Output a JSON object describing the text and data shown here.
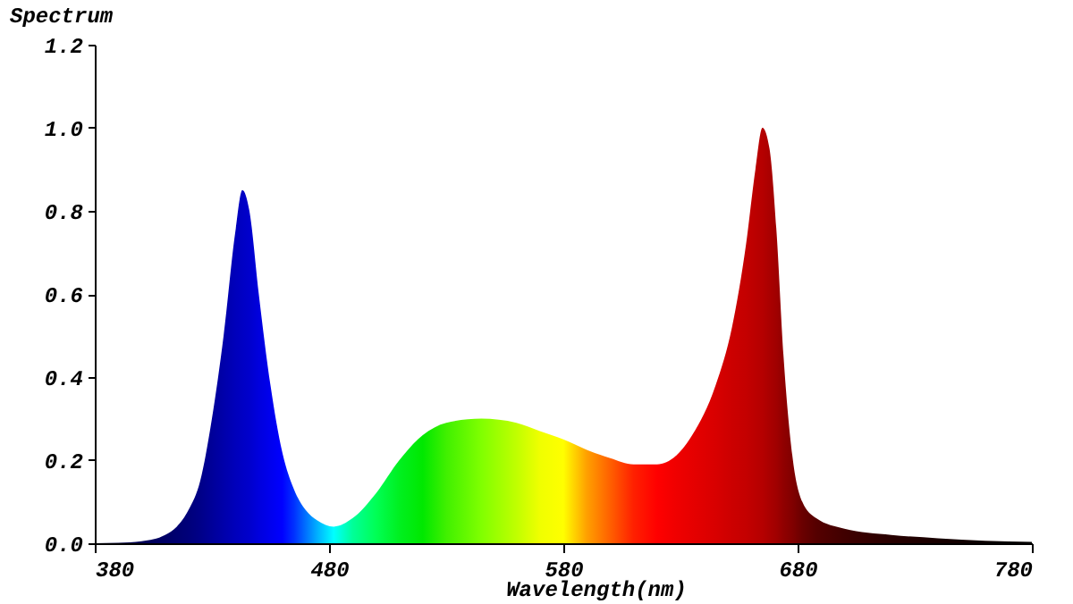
{
  "chart_data": {
    "type": "area",
    "ylabel": "Spectrum",
    "xlabel": "Wavelength(nm)",
    "x": [
      380,
      390,
      400,
      410,
      415,
      420,
      425,
      430,
      435,
      440,
      443,
      446,
      450,
      455,
      460,
      465,
      470,
      475,
      482,
      490,
      500,
      510,
      520,
      530,
      545,
      560,
      570,
      580,
      590,
      600,
      610,
      620,
      628,
      635,
      645,
      652,
      658,
      662,
      665,
      668,
      671,
      674,
      678,
      682,
      688,
      700,
      720,
      740,
      760,
      780
    ],
    "values": [
      0,
      0.001,
      0.005,
      0.02,
      0.04,
      0.08,
      0.15,
      0.3,
      0.5,
      0.75,
      0.85,
      0.8,
      0.6,
      0.38,
      0.22,
      0.13,
      0.08,
      0.055,
      0.04,
      0.06,
      0.12,
      0.2,
      0.26,
      0.29,
      0.3,
      0.29,
      0.27,
      0.25,
      0.225,
      0.205,
      0.19,
      0.19,
      0.21,
      0.26,
      0.38,
      0.52,
      0.72,
      0.9,
      1.0,
      0.95,
      0.75,
      0.45,
      0.2,
      0.1,
      0.06,
      0.035,
      0.02,
      0.012,
      0.006,
      0.003
    ],
    "colors": [
      "#000030",
      "#000040",
      "#000055",
      "#000066",
      "#000070",
      "#00007a",
      "#000088",
      "#000099",
      "#0000aa",
      "#0000bb",
      "#0000c4",
      "#0000cc",
      "#0000dd",
      "#0000ee",
      "#0000ff",
      "#0030ff",
      "#0070ff",
      "#00b0ff",
      "#00ffff",
      "#00ff99",
      "#00ff55",
      "#00f020",
      "#00e800",
      "#40f000",
      "#80ff00",
      "#c0ff00",
      "#f0ff00",
      "#ffff00",
      "#ffa000",
      "#ff6000",
      "#ff2000",
      "#ff0000",
      "#f00000",
      "#e60000",
      "#d80000",
      "#cc0000",
      "#c40000",
      "#bb0000",
      "#b50000",
      "#aa0000",
      "#a00000",
      "#900000",
      "#800000",
      "#6a0000",
      "#550000",
      "#400000",
      "#280000",
      "#180000",
      "#0c0000",
      "#000000"
    ],
    "xlim": [
      380,
      780
    ],
    "xticks": [
      380,
      480,
      580,
      680,
      780
    ],
    "ylim": [
      0,
      1.2
    ],
    "yticks": [
      {
        "value": 0,
        "label": "0.0"
      },
      0.2,
      0.4,
      0.6,
      0.8,
      {
        "value": 1,
        "label": "1.0"
      },
      1.2
    ]
  }
}
